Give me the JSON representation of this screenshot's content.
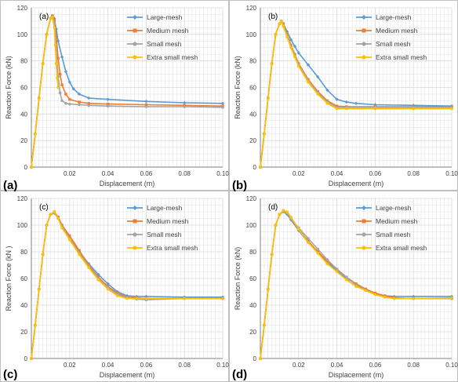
{
  "colors": {
    "large_mesh": "#5B9BD5",
    "medium_mesh": "#ED7D31",
    "small_mesh": "#A5A5A5",
    "extra_small_mesh": "#FFC000",
    "grid": "#d9d9d9"
  },
  "chart_data": [
    {
      "type": "line",
      "panel_label": "(a)",
      "in_plot_label": "(a)",
      "xlabel": "Displacement (m)",
      "ylabel": "Reaction Force (kN)",
      "xlim": [
        0,
        0.1
      ],
      "ylim": [
        0,
        120
      ],
      "xticks": [
        "0.02",
        "0.04",
        "0.06",
        "0.08",
        "0.10"
      ],
      "yticks": [
        "0",
        "20",
        "40",
        "60",
        "80",
        "100",
        "120"
      ],
      "grid": true,
      "legend": "top-right",
      "series": [
        {
          "name": "Large-mesh",
          "x": [
            0,
            0.002,
            0.004,
            0.006,
            0.008,
            0.01,
            0.011,
            0.012,
            0.013,
            0.014,
            0.016,
            0.018,
            0.02,
            0.022,
            0.025,
            0.03,
            0.04,
            0.06,
            0.08,
            0.1
          ],
          "y": [
            0,
            25,
            52,
            78,
            100,
            112,
            114,
            112,
            104,
            95,
            83,
            72,
            64,
            59,
            55,
            52,
            51,
            49.5,
            48.5,
            48
          ]
        },
        {
          "name": "Medium mesh",
          "x": [
            0,
            0.002,
            0.004,
            0.006,
            0.008,
            0.01,
            0.011,
            0.012,
            0.013,
            0.014,
            0.015,
            0.016,
            0.018,
            0.02,
            0.025,
            0.03,
            0.04,
            0.06,
            0.08,
            0.1
          ],
          "y": [
            0,
            25,
            52,
            78,
            100,
            112,
            114,
            111,
            98,
            82,
            70,
            62,
            55,
            51,
            49,
            48,
            47.5,
            47,
            46.5,
            46
          ]
        },
        {
          "name": "Small mesh",
          "x": [
            0,
            0.002,
            0.004,
            0.006,
            0.008,
            0.01,
            0.011,
            0.012,
            0.013,
            0.014,
            0.015,
            0.016,
            0.018,
            0.02,
            0.025,
            0.03,
            0.04,
            0.06,
            0.08,
            0.1
          ],
          "y": [
            0,
            25,
            52,
            78,
            100,
            112,
            113,
            108,
            88,
            68,
            56,
            50,
            48,
            47.5,
            47,
            46.5,
            46,
            45.5,
            45.5,
            45
          ]
        },
        {
          "name": "Extra small mesh",
          "x": [
            0,
            0.002,
            0.004,
            0.006,
            0.008,
            0.01,
            0.011,
            0.012,
            0.0125,
            0.013,
            0.0135,
            0.014
          ],
          "y": [
            0,
            25,
            52,
            78,
            100,
            112,
            113,
            105,
            92,
            78,
            67,
            60
          ]
        }
      ]
    },
    {
      "type": "line",
      "panel_label": "(b)",
      "in_plot_label": "(b)",
      "xlabel": "Displacement (m)",
      "ylabel": "Reaction Force (kN)",
      "xlim": [
        0,
        0.1
      ],
      "ylim": [
        0,
        120
      ],
      "xticks": [
        "0.02",
        "0.04",
        "0.06",
        "0.08",
        "0.10"
      ],
      "yticks": [
        "0",
        "20",
        "40",
        "60",
        "80",
        "100",
        "120"
      ],
      "grid": true,
      "legend": "top-right",
      "series": [
        {
          "name": "Large-mesh",
          "x": [
            0,
            0.002,
            0.004,
            0.006,
            0.008,
            0.01,
            0.011,
            0.012,
            0.014,
            0.016,
            0.018,
            0.02,
            0.025,
            0.03,
            0.035,
            0.04,
            0.045,
            0.05,
            0.06,
            0.08,
            0.1
          ],
          "y": [
            0,
            25,
            52,
            78,
            100,
            108,
            110,
            108,
            102,
            96,
            91,
            86,
            77,
            68,
            58,
            51,
            49,
            48,
            47,
            46.5,
            46
          ]
        },
        {
          "name": "Medium mesh",
          "x": [
            0,
            0.002,
            0.004,
            0.006,
            0.008,
            0.01,
            0.011,
            0.012,
            0.014,
            0.016,
            0.018,
            0.02,
            0.025,
            0.03,
            0.035,
            0.04,
            0.045,
            0.06,
            0.08,
            0.1
          ],
          "y": [
            0,
            25,
            52,
            78,
            100,
            108,
            110,
            108,
            100,
            92,
            85,
            78,
            66,
            57,
            50,
            46,
            45.5,
            45.5,
            45.5,
            45.5
          ]
        },
        {
          "name": "Small mesh",
          "x": [
            0,
            0.002,
            0.004,
            0.006,
            0.008,
            0.01,
            0.011,
            0.012,
            0.014,
            0.016,
            0.018,
            0.02,
            0.025,
            0.03,
            0.035,
            0.04,
            0.045,
            0.06,
            0.08,
            0.1
          ],
          "y": [
            0,
            25,
            52,
            78,
            100,
            108,
            110,
            107,
            99,
            91,
            84,
            77,
            65,
            56,
            49,
            45,
            45,
            45,
            45,
            45
          ]
        },
        {
          "name": "Extra small mesh",
          "x": [
            0,
            0.002,
            0.004,
            0.006,
            0.008,
            0.01,
            0.011,
            0.012,
            0.014,
            0.016,
            0.018,
            0.02,
            0.025,
            0.03,
            0.035,
            0.04,
            0.045,
            0.06,
            0.08,
            0.1
          ],
          "y": [
            0,
            25,
            52,
            78,
            100,
            108,
            110,
            106,
            98,
            90,
            83,
            76,
            64,
            55,
            48,
            44,
            44,
            44,
            44,
            44
          ]
        }
      ]
    },
    {
      "type": "line",
      "panel_label": "(c)",
      "in_plot_label": "(c)",
      "xlabel": "Displacement (m)",
      "ylabel": "Reaction Force (kN )",
      "xlim": [
        0,
        0.1
      ],
      "ylim": [
        0,
        120
      ],
      "xticks": [
        "0.02",
        "0.04",
        "0.06",
        "0.08",
        "0.10"
      ],
      "yticks": [
        "0",
        "20",
        "40",
        "60",
        "80",
        "100",
        "120"
      ],
      "grid": true,
      "legend": "top-right",
      "series": [
        {
          "name": "Large-mesh",
          "x": [
            0,
            0.002,
            0.004,
            0.006,
            0.008,
            0.01,
            0.012,
            0.014,
            0.016,
            0.02,
            0.025,
            0.03,
            0.035,
            0.04,
            0.045,
            0.05,
            0.055,
            0.06,
            0.08,
            0.1
          ],
          "y": [
            0,
            25,
            52,
            78,
            100,
            108,
            109,
            106,
            100,
            90,
            80,
            71,
            63,
            56,
            50,
            47,
            46.5,
            46.5,
            46,
            46
          ]
        },
        {
          "name": "Medium mesh",
          "x": [
            0,
            0.002,
            0.004,
            0.006,
            0.008,
            0.01,
            0.012,
            0.014,
            0.016,
            0.02,
            0.025,
            0.03,
            0.035,
            0.04,
            0.045,
            0.05,
            0.055,
            0.06,
            0.08,
            0.1
          ],
          "y": [
            0,
            25,
            52,
            78,
            100,
            108,
            110,
            106,
            100,
            92,
            81,
            70,
            61,
            54,
            49,
            46,
            45.5,
            45,
            45,
            45
          ]
        },
        {
          "name": "Small mesh",
          "x": [
            0,
            0.002,
            0.004,
            0.006,
            0.008,
            0.01,
            0.012,
            0.014,
            0.016,
            0.02,
            0.025,
            0.03,
            0.035,
            0.04,
            0.045,
            0.05,
            0.055,
            0.06,
            0.08,
            0.1
          ],
          "y": [
            0,
            25,
            52,
            78,
            100,
            108,
            109,
            105,
            99,
            90,
            79,
            69,
            60,
            53,
            48,
            45.5,
            44.5,
            44,
            45,
            45
          ]
        },
        {
          "name": "Extra small mesh",
          "x": [
            0,
            0.002,
            0.004,
            0.006,
            0.008,
            0.01,
            0.012,
            0.014,
            0.016,
            0.02,
            0.025,
            0.03,
            0.035,
            0.04,
            0.045,
            0.05,
            0.055,
            0.06,
            0.08,
            0.1
          ],
          "y": [
            0,
            25,
            52,
            78,
            100,
            108,
            110,
            105,
            98,
            89,
            78,
            68,
            59,
            52,
            47,
            45,
            45,
            45,
            45,
            45
          ]
        }
      ]
    },
    {
      "type": "line",
      "panel_label": "(d)",
      "in_plot_label": "(d)",
      "xlabel": "Displacement (m)",
      "ylabel": "Reaction Force (kN)",
      "xlim": [
        0,
        0.1
      ],
      "ylim": [
        0,
        120
      ],
      "xticks": [
        "0.02",
        "0.04",
        "0.06",
        "0.08",
        "0.10"
      ],
      "yticks": [
        "0",
        "20",
        "40",
        "60",
        "80",
        "100",
        "120"
      ],
      "grid": true,
      "legend": "top-right",
      "series": [
        {
          "name": "Large-mesh",
          "x": [
            0,
            0.002,
            0.004,
            0.006,
            0.008,
            0.01,
            0.012,
            0.014,
            0.016,
            0.02,
            0.025,
            0.03,
            0.035,
            0.04,
            0.045,
            0.05,
            0.055,
            0.06,
            0.065,
            0.07,
            0.08,
            0.1
          ],
          "y": [
            0,
            25,
            52,
            78,
            100,
            108,
            110,
            108,
            104,
            96,
            87,
            80,
            72,
            66,
            60,
            56,
            52,
            49,
            47,
            46.5,
            46.5,
            46.5
          ]
        },
        {
          "name": "Medium mesh",
          "x": [
            0,
            0.002,
            0.004,
            0.006,
            0.008,
            0.01,
            0.012,
            0.014,
            0.016,
            0.02,
            0.025,
            0.03,
            0.035,
            0.04,
            0.045,
            0.05,
            0.055,
            0.06,
            0.065,
            0.07,
            0.08,
            0.1
          ],
          "y": [
            0,
            25,
            52,
            78,
            100,
            108,
            111,
            109,
            105,
            97,
            88,
            80,
            73,
            67,
            61,
            56,
            52,
            49,
            47,
            45.5,
            45,
            45
          ]
        },
        {
          "name": "Small mesh",
          "x": [
            0,
            0.002,
            0.004,
            0.006,
            0.008,
            0.01,
            0.012,
            0.014,
            0.016,
            0.02,
            0.025,
            0.03,
            0.035,
            0.04,
            0.045,
            0.05,
            0.055,
            0.06,
            0.065,
            0.07,
            0.08,
            0.1
          ],
          "y": [
            0,
            25,
            52,
            78,
            100,
            108,
            110,
            109,
            105,
            98,
            90,
            82,
            74,
            67,
            61,
            55,
            51,
            48,
            46,
            45,
            45,
            45
          ]
        },
        {
          "name": "Extra small mesh",
          "x": [
            0,
            0.002,
            0.004,
            0.006,
            0.008,
            0.01,
            0.012,
            0.014,
            0.016,
            0.02,
            0.025,
            0.03,
            0.035,
            0.04,
            0.045,
            0.05,
            0.055,
            0.06,
            0.065,
            0.07,
            0.08,
            0.1
          ],
          "y": [
            0,
            25,
            52,
            78,
            100,
            108,
            111,
            110,
            106,
            97,
            87,
            79,
            71,
            65,
            59,
            54,
            51,
            48,
            46,
            45,
            45,
            45.5
          ]
        }
      ]
    }
  ]
}
